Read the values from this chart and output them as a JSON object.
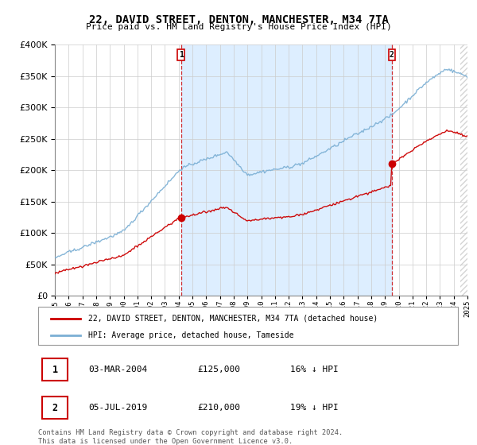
{
  "title": "22, DAVID STREET, DENTON, MANCHESTER, M34 7TA",
  "subtitle": "Price paid vs. HM Land Registry's House Price Index (HPI)",
  "legend_line1": "22, DAVID STREET, DENTON, MANCHESTER, M34 7TA (detached house)",
  "legend_line2": "HPI: Average price, detached house, Tameside",
  "annotation1_label": "1",
  "annotation1_date": "03-MAR-2004",
  "annotation1_price": "£125,000",
  "annotation1_hpi": "16% ↓ HPI",
  "annotation2_label": "2",
  "annotation2_date": "05-JUL-2019",
  "annotation2_price": "£210,000",
  "annotation2_hpi": "19% ↓ HPI",
  "footer": "Contains HM Land Registry data © Crown copyright and database right 2024.\nThis data is licensed under the Open Government Licence v3.0.",
  "line_color_red": "#cc0000",
  "line_color_blue": "#7bafd4",
  "shade_color": "#ddeeff",
  "ylim": [
    0,
    400000
  ],
  "yticks": [
    0,
    50000,
    100000,
    150000,
    200000,
    250000,
    300000,
    350000,
    400000
  ],
  "xmin": 1995,
  "xmax": 2025,
  "sale1_year": 2004.17,
  "sale1_price": 125000,
  "sale2_year": 2019.5,
  "sale2_price": 210000,
  "hpi_seed": 42,
  "background_color": "#ffffff",
  "grid_color": "#cccccc",
  "hatch_start": 2024.5
}
